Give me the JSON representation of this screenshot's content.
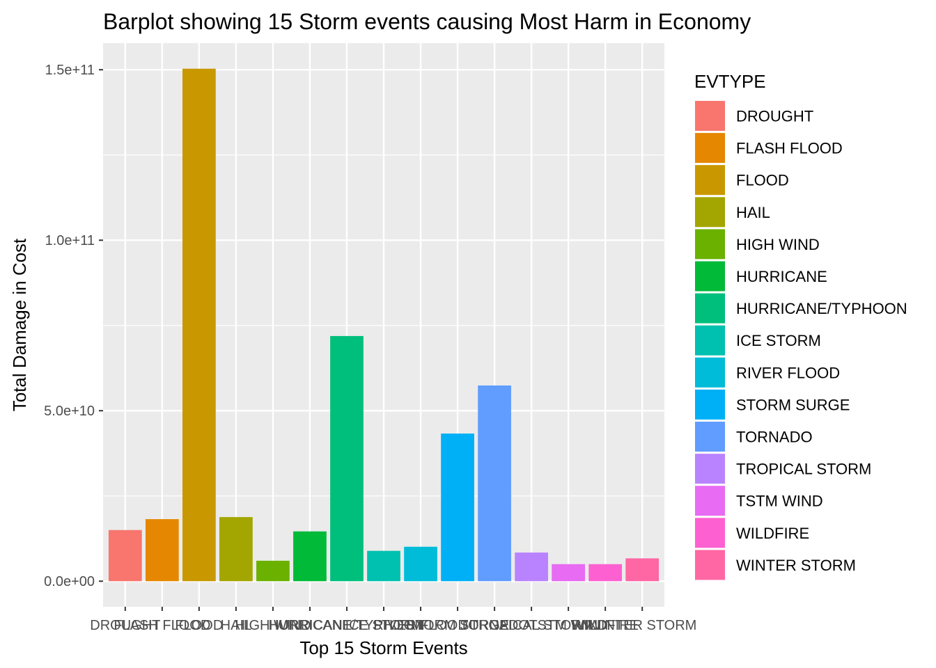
{
  "chart_data": {
    "type": "bar",
    "title": "Barplot showing 15 Storm events causing Most Harm in Economy",
    "xlabel": "Top 15 Storm Events",
    "ylabel": "Total Damage in Cost",
    "categories": [
      "DROUGHT",
      "FLASH FLOOD",
      "FLOOD",
      "HAIL",
      "HIGH WIND",
      "HURRICANE",
      "HURRICANE/TYPHOON",
      "ICE STORM",
      "RIVER FLOOD",
      "STORM SURGE",
      "TORNADO",
      "TROPICAL STORM",
      "TSTM WIND",
      "WILDFIRE",
      "WINTER STORM"
    ],
    "values": [
      15000000000,
      18200000000,
      150300000000,
      18800000000,
      6000000000,
      14600000000,
      71900000000,
      8900000000,
      10100000000,
      43300000000,
      57400000000,
      8400000000,
      5000000000,
      5000000000,
      6700000000
    ],
    "colors": [
      "#F8766D",
      "#E58700",
      "#C99800",
      "#A3A500",
      "#6BB100",
      "#00BA38",
      "#00BF7D",
      "#00C0AF",
      "#00BCD8",
      "#00B0F6",
      "#619CFF",
      "#B983FF",
      "#E76BF3",
      "#FD61D1",
      "#FF67A4"
    ],
    "ylim": [
      -7500000000,
      157800000000
    ],
    "y_ticks": [
      0,
      50000000000,
      100000000000,
      150000000000
    ],
    "y_tick_labels": [
      "0.0e+00",
      "5.0e+10",
      "1.0e+11",
      "1.5e+11"
    ],
    "grid": true,
    "legend": {
      "title": "EVTYPE",
      "position": "right"
    },
    "panel_background": "#EBEBEB",
    "grid_color": "#FFFFFF"
  }
}
